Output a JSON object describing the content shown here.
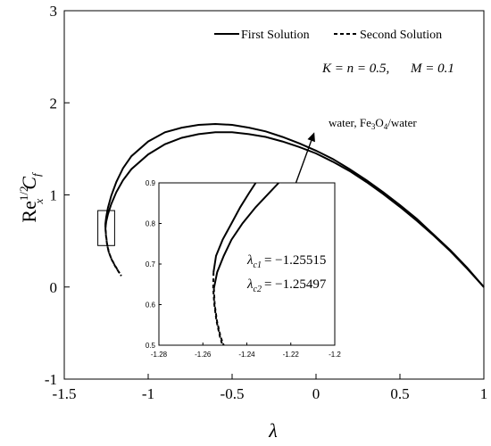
{
  "chart_data": {
    "type": "line",
    "axes": {
      "xlabel": "λ",
      "ylabel_main": "Re",
      "ylabel_sup": "1/2",
      "ylabel_sub": "x",
      "ylabel_var": "C",
      "ylabel_var_sub": "f",
      "xlim": [
        -1.5,
        1
      ],
      "ylim": [
        -1,
        3
      ],
      "xticks": [
        -1.5,
        -1,
        -0.5,
        0,
        0.5,
        1
      ],
      "xtick_labels": [
        "-1.5",
        "-1",
        "-0.5",
        "0",
        "0.5",
        "1"
      ],
      "yticks": [
        -1,
        0,
        1,
        2,
        3
      ],
      "ytick_labels": [
        "-1",
        "0",
        "1",
        "2",
        "3"
      ],
      "grid": false
    },
    "legend": {
      "placement": "top-right",
      "entries": [
        {
          "label": "First Solution",
          "style": "solid"
        },
        {
          "label": "Second Solution",
          "style": "dashed"
        }
      ]
    },
    "params_text": {
      "k_eq": "K = n = 0.5,",
      "m_eq": "M = 0.1"
    },
    "annotation_arrow": {
      "text_prefix": "water, Fe",
      "text_sub": "3",
      "text_mid": "O",
      "text_sub2": "4",
      "text_suffix": "/water",
      "from": [
        -0.12,
        1.13
      ],
      "to": [
        -0.01,
        1.68
      ]
    },
    "series": [
      {
        "name": "water (first solution)",
        "style": "solid",
        "points": [
          [
            -1.25515,
            0.68
          ],
          [
            -1.25,
            0.76
          ],
          [
            -1.24,
            0.86
          ],
          [
            -1.22,
            0.99
          ],
          [
            -1.19,
            1.14
          ],
          [
            -1.15,
            1.29
          ],
          [
            -1.1,
            1.42
          ],
          [
            -1.0,
            1.58
          ],
          [
            -0.9,
            1.68
          ],
          [
            -0.8,
            1.73
          ],
          [
            -0.7,
            1.76
          ],
          [
            -0.6,
            1.77
          ],
          [
            -0.5,
            1.76
          ],
          [
            -0.4,
            1.73
          ],
          [
            -0.3,
            1.69
          ],
          [
            -0.2,
            1.63
          ],
          [
            -0.1,
            1.56
          ],
          [
            0.0,
            1.48
          ],
          [
            0.1,
            1.39
          ],
          [
            0.2,
            1.28
          ],
          [
            0.3,
            1.16
          ],
          [
            0.4,
            1.03
          ],
          [
            0.5,
            0.89
          ],
          [
            0.6,
            0.74
          ],
          [
            0.7,
            0.57
          ],
          [
            0.8,
            0.4
          ],
          [
            0.9,
            0.21
          ],
          [
            1.0,
            0.0
          ]
        ]
      },
      {
        "name": "Fe3O4/water (first solution)",
        "style": "solid",
        "points": [
          [
            -1.25497,
            0.64
          ],
          [
            -1.25,
            0.71
          ],
          [
            -1.24,
            0.79
          ],
          [
            -1.22,
            0.9
          ],
          [
            -1.19,
            1.03
          ],
          [
            -1.15,
            1.16
          ],
          [
            -1.1,
            1.28
          ],
          [
            -1.0,
            1.44
          ],
          [
            -0.9,
            1.55
          ],
          [
            -0.8,
            1.62
          ],
          [
            -0.7,
            1.66
          ],
          [
            -0.6,
            1.68
          ],
          [
            -0.5,
            1.68
          ],
          [
            -0.4,
            1.66
          ],
          [
            -0.3,
            1.63
          ],
          [
            -0.2,
            1.58
          ],
          [
            -0.1,
            1.52
          ],
          [
            0.0,
            1.45
          ],
          [
            0.1,
            1.36
          ],
          [
            0.2,
            1.26
          ],
          [
            0.3,
            1.14
          ],
          [
            0.4,
            1.01
          ],
          [
            0.5,
            0.87
          ],
          [
            0.6,
            0.72
          ],
          [
            0.7,
            0.56
          ],
          [
            0.8,
            0.39
          ],
          [
            0.9,
            0.2
          ],
          [
            1.0,
            0.0
          ]
        ]
      },
      {
        "name": "water (second solution)",
        "style": "dashed",
        "points": [
          [
            -1.25515,
            0.68
          ],
          [
            -1.252,
            0.58
          ],
          [
            -1.245,
            0.47
          ],
          [
            -1.235,
            0.38
          ],
          [
            -1.22,
            0.31
          ],
          [
            -1.2,
            0.24
          ],
          [
            -1.17,
            0.15
          ]
        ]
      },
      {
        "name": "Fe3O4/water (second solution)",
        "style": "dashed",
        "points": [
          [
            -1.25497,
            0.64
          ],
          [
            -1.251,
            0.55
          ],
          [
            -1.244,
            0.45
          ],
          [
            -1.233,
            0.37
          ],
          [
            -1.218,
            0.3
          ],
          [
            -1.195,
            0.22
          ],
          [
            -1.16,
            0.12
          ]
        ]
      }
    ],
    "zoom_box": {
      "x": [
        -1.3,
        -1.2
      ],
      "y": [
        0.45,
        0.83
      ]
    },
    "inset": {
      "xlim": [
        -1.28,
        -1.2
      ],
      "ylim": [
        0.5,
        0.9
      ],
      "xticks": [
        -1.28,
        -1.26,
        -1.24,
        -1.22,
        -1.2
      ],
      "xtick_labels": [
        "-1.28",
        "-1.26",
        "-1.24",
        "-1.22",
        "-1.2"
      ],
      "yticks": [
        0.5,
        0.6,
        0.7,
        0.8,
        0.9
      ],
      "ytick_labels": [
        "0.5",
        "0.6",
        "0.7",
        "0.8",
        "0.9"
      ],
      "series": [
        {
          "style": "solid",
          "points": [
            [
              -1.25515,
              0.68
            ],
            [
              -1.254,
              0.72
            ],
            [
              -1.251,
              0.76
            ],
            [
              -1.247,
              0.8
            ],
            [
              -1.243,
              0.84
            ],
            [
              -1.239,
              0.875
            ],
            [
              -1.236,
              0.9
            ]
          ]
        },
        {
          "style": "solid",
          "points": [
            [
              -1.25497,
              0.64
            ],
            [
              -1.2535,
              0.68
            ],
            [
              -1.2505,
              0.72
            ],
            [
              -1.247,
              0.76
            ],
            [
              -1.242,
              0.8
            ],
            [
              -1.236,
              0.84
            ],
            [
              -1.229,
              0.88
            ],
            [
              -1.2255,
              0.9
            ]
          ]
        },
        {
          "style": "dashed",
          "points": [
            [
              -1.25515,
              0.68
            ],
            [
              -1.2553,
              0.64
            ],
            [
              -1.2548,
              0.6
            ],
            [
              -1.2538,
              0.56
            ],
            [
              -1.2522,
              0.52
            ],
            [
              -1.2511,
              0.5
            ]
          ]
        },
        {
          "style": "dashed",
          "points": [
            [
              -1.25497,
              0.64
            ],
            [
              -1.2546,
              0.6
            ],
            [
              -1.2536,
              0.56
            ],
            [
              -1.2519,
              0.52
            ],
            [
              -1.2505,
              0.5
            ]
          ]
        }
      ],
      "critical_labels": [
        {
          "sym": "λ",
          "sub": "c1",
          "value": "= −1.25515"
        },
        {
          "sym": "λ",
          "sub": "c2",
          "value": "= −1.25497"
        }
      ]
    }
  }
}
